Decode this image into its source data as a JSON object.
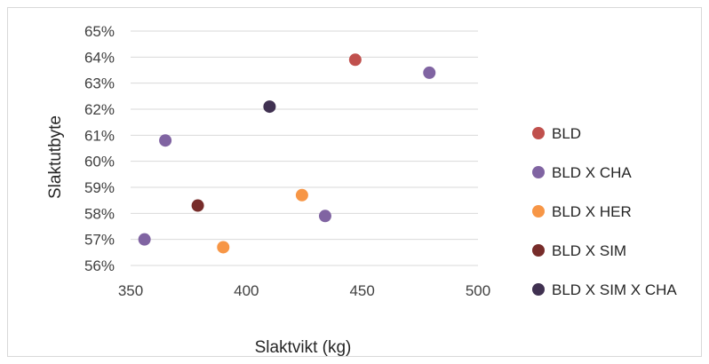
{
  "chart_data": {
    "type": "scatter",
    "xlabel": "Slaktvikt (kg)",
    "ylabel": "Slaktutbyte",
    "xlim": [
      350,
      500
    ],
    "ylim": [
      56,
      65
    ],
    "x_ticks": [
      "350",
      "400",
      "450",
      "500"
    ],
    "y_ticks": [
      "56%",
      "57%",
      "58%",
      "59%",
      "60%",
      "61%",
      "62%",
      "63%",
      "64%",
      "65%"
    ],
    "grid": "horizontal",
    "legend_position": "right",
    "series": [
      {
        "name": "BLD",
        "color": "#c0504d",
        "points": [
          {
            "x": 447,
            "y": 63.9
          }
        ]
      },
      {
        "name": "BLD X CHA",
        "color": "#8064a2",
        "points": [
          {
            "x": 479,
            "y": 63.4
          },
          {
            "x": 365,
            "y": 60.8
          },
          {
            "x": 434,
            "y": 57.9
          },
          {
            "x": 356,
            "y": 57.0
          }
        ]
      },
      {
        "name": "BLD X HER",
        "color": "#f79646",
        "points": [
          {
            "x": 424,
            "y": 58.7
          },
          {
            "x": 390,
            "y": 56.7
          }
        ]
      },
      {
        "name": "BLD X SIM",
        "color": "#772c2a",
        "points": [
          {
            "x": 379,
            "y": 58.3
          }
        ]
      },
      {
        "name": "BLD X SIM X CHA",
        "color": "#403151",
        "points": [
          {
            "x": 410,
            "y": 62.1
          }
        ]
      }
    ]
  }
}
